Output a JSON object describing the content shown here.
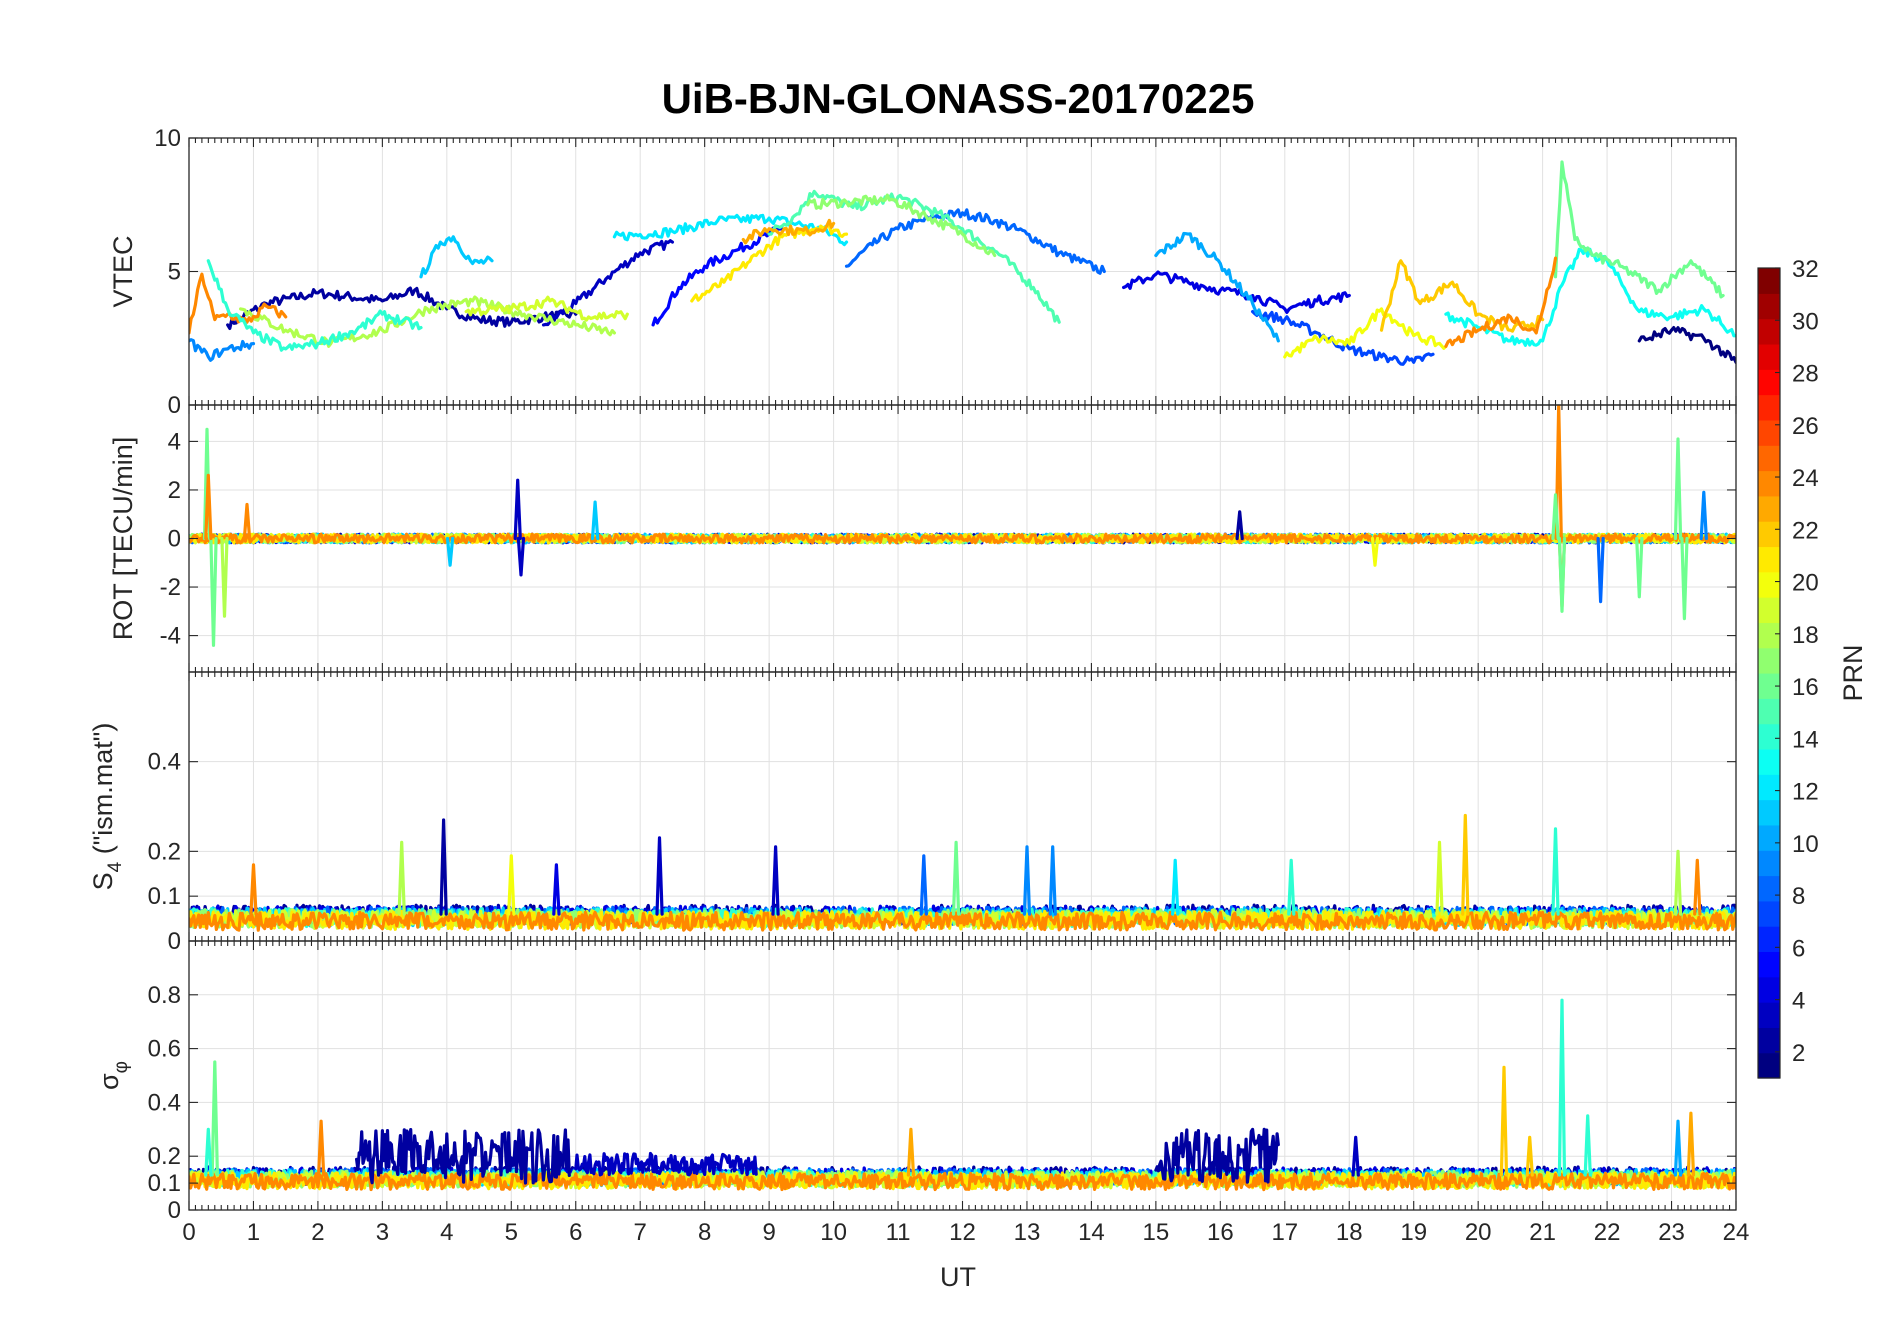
{
  "chart_data": {
    "type": "line",
    "title": "UiB-BJN-GLONASS-20170225",
    "xlabel": "UT",
    "xlim": [
      0,
      24
    ],
    "xticks": [
      "0",
      "1",
      "2",
      "3",
      "4",
      "5",
      "6",
      "7",
      "8",
      "9",
      "10",
      "11",
      "12",
      "13",
      "14",
      "15",
      "16",
      "17",
      "18",
      "19",
      "20",
      "21",
      "22",
      "23",
      "24"
    ],
    "panels": [
      {
        "id": "vtec",
        "ylabel": "VTEC",
        "ylim": [
          0,
          10
        ],
        "yticks": [
          {
            "v": 0,
            "t": "0"
          },
          {
            "v": 5,
            "t": "5"
          },
          {
            "v": 10,
            "t": "10"
          }
        ],
        "series": [
          {
            "prn": 2,
            "x": [
              0.6,
              1.2,
              2,
              3,
              3.5,
              4,
              4.5,
              5,
              5.5,
              6
            ],
            "y": [
              3,
              3.8,
              4.2,
              3.9,
              4.3,
              3.6,
              3.2,
              3.1,
              3.3,
              3.4
            ]
          },
          {
            "prn": 3,
            "x": [
              5.5,
              6,
              6.5,
              7,
              7.5
            ],
            "y": [
              3,
              3.8,
              4.8,
              5.7,
              6.1
            ]
          },
          {
            "prn": 5,
            "x": [
              7.2,
              7.6,
              8,
              8.5,
              9,
              9.2
            ],
            "y": [
              3,
              4.4,
              5.2,
              5.8,
              6.4,
              6.6
            ]
          },
          {
            "prn": 8,
            "x": [
              10.2,
              10.6,
              11,
              11.5,
              12,
              12.5,
              13,
              13.5,
              14.2
            ],
            "y": [
              5.2,
              6,
              6.6,
              7,
              7.2,
              6.9,
              6.4,
              5.7,
              5
            ]
          },
          {
            "prn": 11,
            "x": [
              3.6,
              3.9,
              4.1,
              4.4,
              4.7
            ],
            "y": [
              4.8,
              6.1,
              6.3,
              5.3,
              5.4
            ]
          },
          {
            "prn": 12,
            "x": [
              6.6,
              7.5,
              8.2,
              9,
              9.8,
              10.2
            ],
            "y": [
              6.3,
              6.5,
              6.9,
              7,
              6.6,
              6.1
            ]
          },
          {
            "prn": 15,
            "x": [
              9,
              9.4,
              9.7,
              10.3,
              11,
              11.6,
              12,
              12.6,
              13.1,
              13.5
            ],
            "y": [
              6.4,
              7.1,
              8,
              7.4,
              7.8,
              7.2,
              6.6,
              5.6,
              4.4,
              3.1
            ]
          },
          {
            "prn": 17,
            "x": [
              9.6,
              10.2,
              10.9,
              11.5,
              12,
              12.5
            ],
            "y": [
              7.5,
              7.6,
              7.7,
              7,
              6.4,
              5.6
            ]
          },
          {
            "prn": 21,
            "x": [
              7.8,
              8.3,
              8.8,
              9.2,
              9.8,
              10.2
            ],
            "y": [
              3.9,
              4.6,
              5.6,
              6.3,
              6.7,
              6.4
            ]
          },
          {
            "prn": 23,
            "x": [
              8.6,
              9,
              9.6,
              10
            ],
            "y": [
              6.2,
              6.6,
              6.5,
              6.8
            ]
          },
          {
            "prn": 4,
            "x": [
              14.5,
              15,
              15.5,
              16,
              16.5,
              17,
              17.5,
              18
            ],
            "y": [
              4.4,
              4.9,
              4.6,
              4.3,
              4.1,
              3.6,
              3.9,
              4.1
            ]
          },
          {
            "prn": 7,
            "x": [
              16.5,
              17,
              17.5,
              18,
              18.5,
              19,
              19.3
            ],
            "y": [
              3.5,
              3.2,
              2.7,
              2.1,
              1.8,
              1.6,
              1.9
            ]
          },
          {
            "prn": 10,
            "x": [
              15,
              15.5,
              16,
              16.5,
              16.9
            ],
            "y": [
              5.6,
              6.4,
              5.3,
              3.8,
              2.4
            ]
          },
          {
            "prn": 13,
            "x": [
              19.5,
              20,
              20.5,
              21,
              21.3,
              21.6,
              22,
              22.5,
              23,
              23.5,
              24
            ],
            "y": [
              3.4,
              2.9,
              2.4,
              2.4,
              4.5,
              5.8,
              5.4,
              3.5,
              3.3,
              3.6,
              2.6
            ]
          },
          {
            "prn": 16,
            "x": [
              21.2,
              21.3,
              21.5,
              21.8,
              22.2,
              22.8,
              23.3,
              23.8
            ],
            "y": [
              4.8,
              9.1,
              6.2,
              5.6,
              5.2,
              4.3,
              5.4,
              4.1
            ]
          },
          {
            "prn": 20,
            "x": [
              17,
              17.5,
              18,
              18.5,
              19,
              19.5
            ],
            "y": [
              1.8,
              2.5,
              2.3,
              3.6,
              2.6,
              2.2
            ]
          },
          {
            "prn": 22,
            "x": [
              18.5,
              18.8,
              19.1,
              19.6,
              20,
              20.5,
              21
            ],
            "y": [
              2.8,
              5.4,
              3.8,
              4.6,
              3.4,
              2.8,
              3.2
            ]
          },
          {
            "prn": 24,
            "x": [
              19.5,
              20,
              20.5,
              20.9,
              21.2
            ],
            "y": [
              2.2,
              2.8,
              3.3,
              2.7,
              5.5
            ]
          },
          {
            "prn": 18,
            "x": [
              0.8,
              1.5,
              2.2,
              3,
              3.7,
              4.4,
              5.2,
              6,
              6.6
            ],
            "y": [
              3.6,
              2.8,
              2.3,
              2.8,
              3.6,
              3.9,
              3.4,
              3,
              2.7
            ]
          },
          {
            "prn": 24,
            "x": [
              0,
              0.2,
              0.4,
              0.6,
              0.9,
              1.2,
              1.5
            ],
            "y": [
              2.7,
              4.9,
              3.2,
              3.4,
              3.1,
              3.7,
              3.3
            ]
          },
          {
            "prn": 14,
            "x": [
              0.3,
              0.6,
              1,
              1.5,
              2,
              2.6,
              3,
              3.6
            ],
            "y": [
              5.4,
              3.6,
              2.7,
              2.1,
              2.3,
              2.8,
              3.4,
              2.9
            ]
          },
          {
            "prn": 9,
            "x": [
              0,
              0.3,
              0.6,
              1
            ],
            "y": [
              2.4,
              1.8,
              2.1,
              2.3
            ]
          },
          {
            "prn": 19,
            "x": [
              4.3,
              5,
              5.6,
              6.2,
              6.8
            ],
            "y": [
              3.5,
              3.6,
              3.9,
              3.3,
              3.4
            ]
          },
          {
            "prn": 1,
            "x": [
              22.5,
              23,
              23.5,
              24
            ],
            "y": [
              2.4,
              2.8,
              2.5,
              1.6
            ]
          }
        ]
      },
      {
        "id": "rot",
        "ylabel": "ROT [TECU/min]",
        "ylim": [
          -5.5,
          5.5
        ],
        "yticks": [
          {
            "v": -4,
            "t": "-4"
          },
          {
            "v": -2,
            "t": "-2"
          },
          {
            "v": 0,
            "t": "0"
          },
          {
            "v": 2,
            "t": "2"
          },
          {
            "v": 4,
            "t": "4"
          }
        ],
        "baseline": 0,
        "noise": 0.18,
        "spikes": [
          {
            "prn": 16,
            "x": 0.28,
            "y": 4.5
          },
          {
            "prn": 16,
            "x": 0.38,
            "y": -4.4
          },
          {
            "prn": 24,
            "x": 0.3,
            "y": 2.6
          },
          {
            "prn": 18,
            "x": 0.55,
            "y": -3.2
          },
          {
            "prn": 24,
            "x": 0.9,
            "y": 1.4
          },
          {
            "prn": 3,
            "x": 5.1,
            "y": 2.4
          },
          {
            "prn": 3,
            "x": 5.15,
            "y": -1.5
          },
          {
            "prn": 11,
            "x": 6.3,
            "y": 1.5
          },
          {
            "prn": 11,
            "x": 4.05,
            "y": -1.1
          },
          {
            "prn": 24,
            "x": 21.25,
            "y": 5.5
          },
          {
            "prn": 24,
            "x": 21.3,
            "y": -2.8
          },
          {
            "prn": 16,
            "x": 21.3,
            "y": -3
          },
          {
            "prn": 16,
            "x": 21.2,
            "y": 1.8
          },
          {
            "prn": 8,
            "x": 21.9,
            "y": -2.6
          },
          {
            "prn": 16,
            "x": 23.1,
            "y": 4.1
          },
          {
            "prn": 16,
            "x": 23.2,
            "y": -3.3
          },
          {
            "prn": 16,
            "x": 22.5,
            "y": -2.4
          },
          {
            "prn": 9,
            "x": 23.5,
            "y": 1.9
          },
          {
            "prn": 2,
            "x": 16.3,
            "y": 1.1
          },
          {
            "prn": 20,
            "x": 18.4,
            "y": -1.1
          }
        ]
      },
      {
        "id": "s4",
        "ylabel": "S4 (\"ism.mat\")",
        "ylabel_main": "S",
        "ylabel_sub": "4",
        "ylabel_rest": " (\"ism.mat\")",
        "ylim": [
          0,
          0.6
        ],
        "yticks": [
          {
            "v": 0,
            "t": "0"
          },
          {
            "v": 0.1,
            "t": "0.1"
          },
          {
            "v": 0.2,
            "t": "0.2"
          },
          {
            "v": 0.4,
            "t": "0.4"
          }
        ],
        "baseline": 0.06,
        "noise": 0.02,
        "spikes": [
          {
            "prn": 2,
            "x": 3.95,
            "y": 0.27
          },
          {
            "prn": 18,
            "x": 3.3,
            "y": 0.22
          },
          {
            "prn": 24,
            "x": 1,
            "y": 0.17
          },
          {
            "prn": 20,
            "x": 5,
            "y": 0.19
          },
          {
            "prn": 3,
            "x": 7.3,
            "y": 0.23
          },
          {
            "prn": 3,
            "x": 9.1,
            "y": 0.21
          },
          {
            "prn": 8,
            "x": 11.4,
            "y": 0.19
          },
          {
            "prn": 16,
            "x": 11.9,
            "y": 0.22
          },
          {
            "prn": 9,
            "x": 13,
            "y": 0.21
          },
          {
            "prn": 9,
            "x": 13.4,
            "y": 0.21
          },
          {
            "prn": 12,
            "x": 15.3,
            "y": 0.18
          },
          {
            "prn": 22,
            "x": 19.8,
            "y": 0.28
          },
          {
            "prn": 19,
            "x": 19.4,
            "y": 0.22
          },
          {
            "prn": 14,
            "x": 21.2,
            "y": 0.25
          },
          {
            "prn": 18,
            "x": 23.1,
            "y": 0.2
          },
          {
            "prn": 24,
            "x": 23.4,
            "y": 0.18
          },
          {
            "prn": 4,
            "x": 5.7,
            "y": 0.17
          },
          {
            "prn": 14,
            "x": 17.1,
            "y": 0.18
          }
        ]
      },
      {
        "id": "sigma",
        "ylabel": "σφ",
        "ylabel_main": "σ",
        "ylabel_sub": "φ",
        "ylim": [
          0,
          1
        ],
        "yticks": [
          {
            "v": 0,
            "t": "0"
          },
          {
            "v": 0.1,
            "t": "0.1"
          },
          {
            "v": 0.2,
            "t": "0.2"
          },
          {
            "v": 0.4,
            "t": "0.4"
          },
          {
            "v": 0.6,
            "t": "0.6"
          },
          {
            "v": 0.8,
            "t": "0.8"
          }
        ],
        "baseline": 0.13,
        "noise": 0.03,
        "spikes": [
          {
            "prn": 16,
            "x": 0.4,
            "y": 0.55
          },
          {
            "prn": 14,
            "x": 0.3,
            "y": 0.3
          },
          {
            "prn": 24,
            "x": 2.05,
            "y": 0.33
          },
          {
            "prn": 22,
            "x": 20.4,
            "y": 0.53
          },
          {
            "prn": 14,
            "x": 21.3,
            "y": 0.78
          },
          {
            "prn": 14,
            "x": 21.7,
            "y": 0.35
          },
          {
            "prn": 23,
            "x": 23.3,
            "y": 0.36
          },
          {
            "prn": 10,
            "x": 23.1,
            "y": 0.33
          },
          {
            "prn": 22,
            "x": 20.8,
            "y": 0.27
          },
          {
            "prn": 23,
            "x": 11.2,
            "y": 0.3
          },
          {
            "prn": 3,
            "x": 18.1,
            "y": 0.27
          }
        ],
        "bands": [
          {
            "prn": 2,
            "x0": 2.6,
            "x1": 5.9,
            "y": 0.2,
            "amp": 0.1
          },
          {
            "prn": 2,
            "x0": 15,
            "x1": 16.9,
            "y": 0.2,
            "amp": 0.1
          },
          {
            "prn": 3,
            "x0": 6,
            "x1": 8.8,
            "y": 0.17,
            "amp": 0.04
          }
        ]
      }
    ],
    "colorbar": {
      "label": "PRN",
      "range": [
        1,
        32
      ],
      "ticks": [
        "2",
        "4",
        "6",
        "8",
        "10",
        "12",
        "14",
        "16",
        "18",
        "20",
        "22",
        "24",
        "26",
        "28",
        "30",
        "32"
      ],
      "colormap": "jet"
    }
  }
}
